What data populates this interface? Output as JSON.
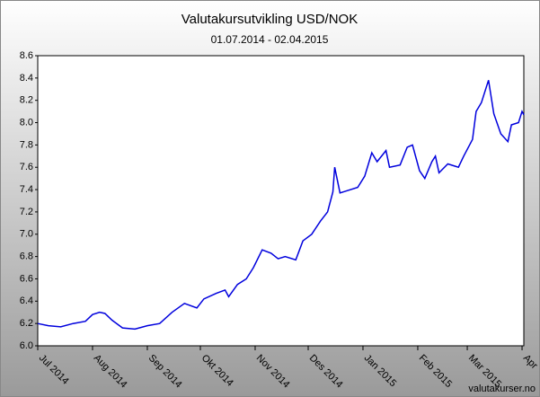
{
  "chart_data": {
    "type": "line",
    "title": "Valutakursutvikling USD/NOK",
    "subtitle": "01.07.2014 - 02.04.2015",
    "watermark": "valutakurser.no",
    "x": [
      "2014-07-01",
      "2014-07-07",
      "2014-07-14",
      "2014-07-21",
      "2014-07-28",
      "2014-08-01",
      "2014-08-05",
      "2014-08-08",
      "2014-08-12",
      "2014-08-18",
      "2014-08-25",
      "2014-09-01",
      "2014-09-08",
      "2014-09-15",
      "2014-09-22",
      "2014-09-29",
      "2014-10-03",
      "2014-10-10",
      "2014-10-15",
      "2014-10-17",
      "2014-10-22",
      "2014-10-27",
      "2014-10-31",
      "2014-11-05",
      "2014-11-10",
      "2014-11-14",
      "2014-11-18",
      "2014-11-24",
      "2014-11-28",
      "2014-12-03",
      "2014-12-08",
      "2014-12-12",
      "2014-12-15",
      "2014-12-16",
      "2014-12-19",
      "2014-12-29",
      "2015-01-02",
      "2015-01-06",
      "2015-01-09",
      "2015-01-14",
      "2015-01-16",
      "2015-01-22",
      "2015-01-26",
      "2015-01-29",
      "2015-02-02",
      "2015-02-05",
      "2015-02-09",
      "2015-02-11",
      "2015-02-13",
      "2015-02-18",
      "2015-02-24",
      "2015-02-27",
      "2015-03-04",
      "2015-03-06",
      "2015-03-09",
      "2015-03-13",
      "2015-03-16",
      "2015-03-20",
      "2015-03-24",
      "2015-03-26",
      "2015-03-30",
      "2015-04-01",
      "2015-04-02"
    ],
    "series": [
      {
        "name": "USD/NOK",
        "color": "#0000dd",
        "values": [
          6.2,
          6.18,
          6.17,
          6.2,
          6.22,
          6.28,
          6.3,
          6.29,
          6.23,
          6.16,
          6.15,
          6.18,
          6.2,
          6.3,
          6.38,
          6.34,
          6.42,
          6.47,
          6.5,
          6.44,
          6.55,
          6.6,
          6.7,
          6.86,
          6.83,
          6.78,
          6.8,
          6.77,
          6.94,
          7.0,
          7.12,
          7.2,
          7.38,
          7.6,
          7.37,
          7.42,
          7.52,
          7.73,
          7.65,
          7.75,
          7.6,
          7.62,
          7.78,
          7.8,
          7.57,
          7.5,
          7.65,
          7.7,
          7.55,
          7.63,
          7.6,
          7.7,
          7.85,
          8.1,
          8.18,
          8.38,
          8.08,
          7.9,
          7.83,
          7.98,
          8.0,
          8.1,
          8.07
        ]
      }
    ],
    "xlim": [
      "2014-07-01",
      "2015-04-02"
    ],
    "xticks": [
      {
        "value": "2014-07-01",
        "label": "Jul 2014"
      },
      {
        "value": "2014-08-01",
        "label": "Aug 2014"
      },
      {
        "value": "2014-09-01",
        "label": "Sep 2014"
      },
      {
        "value": "2014-10-01",
        "label": "Okt 2014"
      },
      {
        "value": "2014-11-01",
        "label": "Nov 2014"
      },
      {
        "value": "2014-12-01",
        "label": "Des 2014"
      },
      {
        "value": "2015-01-01",
        "label": "Jan 2015"
      },
      {
        "value": "2015-02-01",
        "label": "Feb 2015"
      },
      {
        "value": "2015-03-01",
        "label": "Mar 2015"
      },
      {
        "value": "2015-04-01",
        "label": "Apr"
      }
    ],
    "ylim": [
      6.0,
      8.6
    ],
    "yticks": [
      {
        "value": 6,
        "label": "6.0"
      },
      6.2,
      6.4,
      6.6,
      6.8,
      {
        "value": 7,
        "label": "7.0"
      },
      7.2,
      7.4,
      7.6,
      7.8,
      {
        "value": 8,
        "label": "8.0"
      },
      8.2,
      8.4,
      8.6
    ],
    "grid": false
  }
}
